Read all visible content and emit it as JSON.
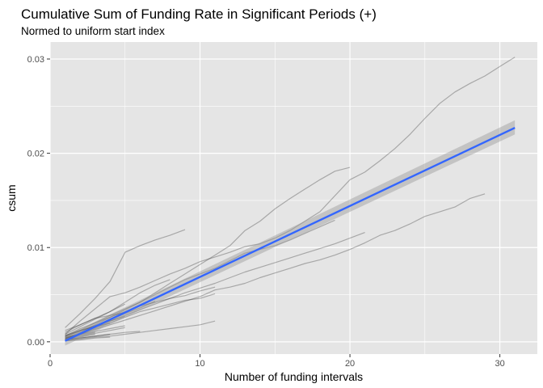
{
  "chart_data": {
    "type": "line",
    "title": "Cumulative Sum of Funding Rate in Significant Periods (+)",
    "subtitle": "Normed to uniform start index",
    "xlabel": "Number of funding intervals",
    "ylabel": "csum",
    "xlim": [
      0,
      32.5
    ],
    "ylim": [
      -0.0013,
      0.0318
    ],
    "x_ticks": [
      0,
      10,
      20,
      30
    ],
    "y_ticks": [
      0.0,
      0.01,
      0.02,
      0.03
    ],
    "x_tick_labels": [
      "0",
      "10",
      "20",
      "30"
    ],
    "y_tick_labels": [
      "0.00",
      "0.01",
      "0.02",
      "0.03"
    ],
    "grid": true,
    "colors": {
      "panel_background": "#e5e5e5",
      "grid": "#ffffff",
      "series_line": "#000000",
      "trend_line": "#3366ff",
      "confidence_band": "#999999"
    },
    "series": [
      {
        "x": [
          1,
          2,
          3,
          4,
          5,
          6,
          7,
          8,
          9,
          10,
          11,
          12,
          13,
          14,
          15,
          16,
          17,
          18,
          19,
          20,
          21,
          22,
          23,
          24,
          25,
          26,
          27,
          28,
          29,
          30,
          31
        ],
        "values": [
          0.0008,
          0.0022,
          0.0035,
          0.0048,
          0.0052,
          0.0058,
          0.0065,
          0.0072,
          0.0078,
          0.0085,
          0.009,
          0.0095,
          0.0101,
          0.0104,
          0.011,
          0.0118,
          0.0128,
          0.0138,
          0.0155,
          0.0172,
          0.018,
          0.0192,
          0.0205,
          0.022,
          0.0237,
          0.0253,
          0.0265,
          0.0274,
          0.0282,
          0.0292,
          0.0302
        ]
      },
      {
        "x": [
          1,
          2,
          3,
          4,
          5,
          6,
          7,
          8,
          9,
          10,
          11,
          12,
          13,
          14,
          15,
          16,
          17,
          18,
          19,
          20
        ],
        "values": [
          0.0005,
          0.0012,
          0.002,
          0.0028,
          0.0035,
          0.0042,
          0.0052,
          0.0062,
          0.0072,
          0.0082,
          0.0092,
          0.0102,
          0.0118,
          0.0128,
          0.0141,
          0.0152,
          0.0162,
          0.0172,
          0.0181,
          0.0185
        ]
      },
      {
        "x": [
          1,
          2,
          3,
          4,
          5,
          6,
          7,
          8,
          9,
          10,
          11,
          12,
          13,
          14,
          15,
          16,
          17,
          18,
          19,
          20,
          21,
          22,
          23,
          24,
          25,
          26,
          27,
          28,
          29
        ],
        "values": [
          0.0003,
          0.0008,
          0.0013,
          0.0018,
          0.0023,
          0.0028,
          0.0033,
          0.0038,
          0.0043,
          0.0048,
          0.0055,
          0.0058,
          0.0062,
          0.0068,
          0.0073,
          0.0078,
          0.0083,
          0.0087,
          0.0092,
          0.0098,
          0.0105,
          0.0113,
          0.0118,
          0.0125,
          0.0133,
          0.0138,
          0.0143,
          0.0152,
          0.0157
        ]
      },
      {
        "x": [
          1,
          2,
          3,
          4,
          5,
          6,
          7,
          8,
          9
        ],
        "values": [
          0.0015,
          0.003,
          0.0046,
          0.0064,
          0.0095,
          0.0102,
          0.0108,
          0.0113,
          0.0119
        ]
      },
      {
        "x": [
          1,
          2,
          3,
          4,
          5,
          6,
          7,
          8,
          9,
          10,
          11,
          12,
          13,
          14,
          15,
          16,
          17,
          18,
          19
        ],
        "values": [
          0.0004,
          0.001,
          0.0018,
          0.0026,
          0.0034,
          0.0042,
          0.005,
          0.0058,
          0.0066,
          0.0072,
          0.0078,
          0.0086,
          0.0094,
          0.0098,
          0.0102,
          0.0108,
          0.0115,
          0.0122,
          0.0129
        ]
      },
      {
        "x": [
          1,
          2,
          3,
          4,
          5,
          6,
          7,
          8,
          9,
          10,
          11,
          12,
          13,
          14,
          15,
          16,
          17,
          18,
          19,
          20,
          21
        ],
        "values": [
          0.0003,
          0.0009,
          0.0015,
          0.0022,
          0.0028,
          0.0034,
          0.004,
          0.0046,
          0.0052,
          0.0057,
          0.0062,
          0.0068,
          0.0074,
          0.0079,
          0.0084,
          0.0089,
          0.0094,
          0.0099,
          0.0104,
          0.011,
          0.0116
        ]
      },
      {
        "x": [
          1,
          2,
          3,
          4,
          5,
          6,
          7,
          8
        ],
        "values": [
          0.0012,
          0.0018,
          0.0025,
          0.0032,
          0.0042,
          0.0052,
          0.006,
          0.0066
        ]
      },
      {
        "x": [
          1,
          2,
          3,
          4,
          5,
          6,
          7,
          8,
          9,
          10,
          11
        ],
        "values": [
          0.0004,
          0.0008,
          0.0014,
          0.002,
          0.0026,
          0.0032,
          0.0036,
          0.004,
          0.0044,
          0.0046,
          0.0051
        ]
      },
      {
        "x": [
          1,
          2,
          3,
          4,
          5,
          6,
          7,
          8,
          9,
          10,
          11
        ],
        "values": [
          0.0001,
          0.0003,
          0.0005,
          0.0006,
          0.0008,
          0.001,
          0.0012,
          0.0014,
          0.0016,
          0.0018,
          0.0022
        ]
      },
      {
        "x": [
          1,
          2,
          3,
          4,
          5,
          6,
          7,
          8,
          9,
          10,
          11
        ],
        "values": [
          0.0006,
          0.0014,
          0.002,
          0.0026,
          0.0032,
          0.0038,
          0.0042,
          0.0046,
          0.0049,
          0.0054,
          0.0058
        ]
      },
      {
        "x": [
          1,
          2,
          3,
          4,
          5
        ],
        "values": [
          0.0008,
          0.0016,
          0.0024,
          0.0032,
          0.004
        ]
      },
      {
        "x": [
          1,
          2,
          3,
          4,
          5,
          6
        ],
        "values": [
          0.0002,
          0.0004,
          0.0006,
          0.0008,
          0.001,
          0.0011
        ]
      },
      {
        "x": [
          1,
          2,
          3,
          4,
          5
        ],
        "values": [
          0.0005,
          0.0008,
          0.0011,
          0.0014,
          0.0017
        ]
      },
      {
        "x": [
          1,
          2,
          3,
          4,
          5
        ],
        "values": [
          0.0003,
          0.0006,
          0.0009,
          0.0012,
          0.0015
        ]
      },
      {
        "x": [
          1,
          2,
          3,
          4
        ],
        "values": [
          0.0002,
          0.0004,
          0.0006,
          0.0008
        ]
      },
      {
        "x": [
          1,
          2,
          3,
          4
        ],
        "values": [
          0.0006,
          0.0012,
          0.0016,
          0.002
        ]
      },
      {
        "x": [
          1,
          2,
          3,
          4,
          5
        ],
        "values": [
          0.001,
          0.0018,
          0.0025,
          0.0028,
          0.0031
        ]
      },
      {
        "x": [
          1,
          2,
          3
        ],
        "values": [
          0.0004,
          0.0007,
          0.001
        ]
      },
      {
        "x": [
          1,
          2,
          3,
          4
        ],
        "values": [
          0.0001,
          0.0002,
          0.0004,
          0.0005
        ]
      },
      {
        "x": [
          1,
          2,
          3,
          4,
          5
        ],
        "values": [
          0.0007,
          0.0012,
          0.0017,
          0.0022,
          0.0027
        ]
      },
      {
        "x": [
          1,
          2,
          3,
          4,
          5,
          6,
          7
        ],
        "values": [
          0.0006,
          0.0011,
          0.0017,
          0.0023,
          0.003,
          0.0036,
          0.0043
        ]
      },
      {
        "x": [
          1,
          2,
          3
        ],
        "values": [
          0.0002,
          0.0005,
          0.0008
        ]
      }
    ],
    "trend": {
      "x": [
        1,
        31
      ],
      "values": [
        0.0001,
        0.0227
      ],
      "ci_lower": [
        -0.0004,
        0.022
      ],
      "ci_upper": [
        0.0006,
        0.0235
      ]
    }
  }
}
